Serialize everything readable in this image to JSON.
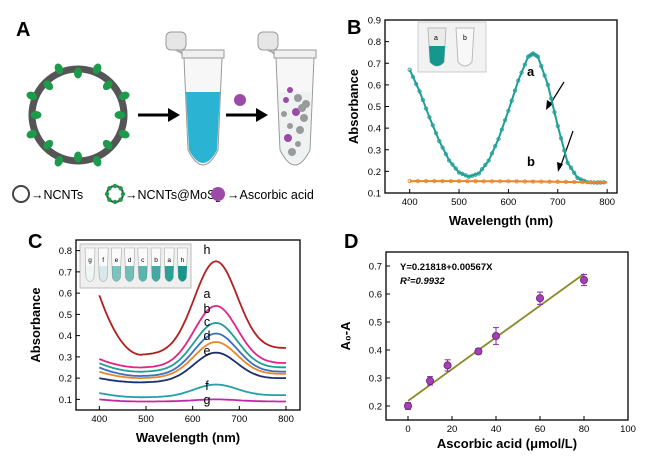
{
  "figure": {
    "panel_labels": {
      "A": "A",
      "B": "B",
      "C": "C",
      "D": "D"
    },
    "legend": {
      "ncnts": "→NCNTs",
      "ncnts_mos2_prefix": "→NCNTs@MoS",
      "ncnts_mos2_sub": "2",
      "ascorbic": "→Ascorbic acid"
    },
    "colors": {
      "teal": "#1f9e96",
      "orange": "#e8862a",
      "black": "#000000"
    }
  },
  "chart_data": [
    {
      "id": "B",
      "type": "line",
      "xlabel": "Wavelength (nm)",
      "ylabel": "Absorbance",
      "xlim": [
        350,
        820
      ],
      "ylim": [
        0.1,
        0.9
      ],
      "xticks": [
        400,
        500,
        600,
        700,
        800
      ],
      "yticks": [
        0.1,
        0.2,
        0.3,
        0.4,
        0.5,
        0.6,
        0.7,
        0.8,
        0.9
      ],
      "inset_labels": [
        "a",
        "b"
      ],
      "series": [
        {
          "name": "a",
          "color": "#1f9e96",
          "x": [
            400,
            420,
            440,
            460,
            480,
            500,
            520,
            540,
            560,
            580,
            600,
            620,
            640,
            650,
            660,
            680,
            700,
            720,
            740,
            760,
            780,
            800
          ],
          "y": [
            0.67,
            0.57,
            0.45,
            0.34,
            0.25,
            0.195,
            0.175,
            0.19,
            0.25,
            0.35,
            0.48,
            0.62,
            0.73,
            0.745,
            0.73,
            0.6,
            0.41,
            0.24,
            0.17,
            0.15,
            0.148,
            0.15
          ]
        },
        {
          "name": "b",
          "color": "#e8862a",
          "x": [
            400,
            450,
            500,
            550,
            600,
            650,
            700,
            750,
            800
          ],
          "y": [
            0.155,
            0.155,
            0.155,
            0.154,
            0.154,
            0.153,
            0.152,
            0.15,
            0.149
          ]
        }
      ]
    },
    {
      "id": "C",
      "type": "line",
      "xlabel": "Wavelength (nm)",
      "ylabel": "Absorbance",
      "xlim": [
        350,
        830
      ],
      "ylim": [
        0.05,
        0.85
      ],
      "xticks": [
        400,
        500,
        600,
        700,
        800
      ],
      "yticks": [
        0.1,
        0.2,
        0.3,
        0.4,
        0.5,
        0.6,
        0.7,
        0.8
      ],
      "inset_tube_labels": [
        "g",
        "f",
        "e",
        "d",
        "c",
        "b",
        "a",
        "h"
      ],
      "series": [
        {
          "name": "h",
          "color": "#b02020",
          "y400": 0.59,
          "y500": 0.31,
          "peak": 0.75,
          "y800": 0.34
        },
        {
          "name": "a",
          "color": "#e0248a",
          "y400": 0.29,
          "y500": 0.25,
          "peak": 0.54,
          "y800": 0.27
        },
        {
          "name": "b",
          "color": "#1f9e96",
          "y400": 0.27,
          "y500": 0.23,
          "peak": 0.46,
          "y800": 0.25
        },
        {
          "name": "c",
          "color": "#3a6fbf",
          "y400": 0.25,
          "y500": 0.21,
          "peak": 0.41,
          "y800": 0.23
        },
        {
          "name": "d",
          "color": "#e8862a",
          "y400": 0.23,
          "y500": 0.2,
          "peak": 0.37,
          "y800": 0.22
        },
        {
          "name": "e",
          "color": "#1a2f6e",
          "y400": 0.2,
          "y500": 0.18,
          "peak": 0.32,
          "y800": 0.2
        },
        {
          "name": "f",
          "color": "#22a0a8",
          "y400": 0.13,
          "y500": 0.11,
          "peak": 0.17,
          "y800": 0.12
        },
        {
          "name": "g",
          "color": "#c02aa8",
          "y400": 0.1,
          "y500": 0.09,
          "peak": 0.1,
          "y800": 0.09
        }
      ]
    },
    {
      "id": "D",
      "type": "scatter",
      "xlabel": "Ascorbic acid (μmol/L)",
      "ylabel": "A₀-A",
      "xlim": [
        -10,
        100
      ],
      "ylim": [
        0.15,
        0.75
      ],
      "xticks": [
        0,
        20,
        40,
        60,
        80,
        100
      ],
      "yticks": [
        0.2,
        0.3,
        0.4,
        0.5,
        0.6,
        0.7
      ],
      "equation": "Y=0.21818+0.00567X",
      "r2": "R²=0.9932",
      "fit": {
        "intercept": 0.21818,
        "slope": 0.00567,
        "x_range": [
          0,
          80
        ]
      },
      "points": [
        {
          "x": 0,
          "y": 0.2,
          "err": 0.012
        },
        {
          "x": 10,
          "y": 0.29,
          "err": 0.015
        },
        {
          "x": 18,
          "y": 0.345,
          "err": 0.02
        },
        {
          "x": 32,
          "y": 0.395,
          "err": 0.01
        },
        {
          "x": 40,
          "y": 0.45,
          "err": 0.03
        },
        {
          "x": 60,
          "y": 0.585,
          "err": 0.022
        },
        {
          "x": 80,
          "y": 0.65,
          "err": 0.02
        }
      ]
    }
  ]
}
